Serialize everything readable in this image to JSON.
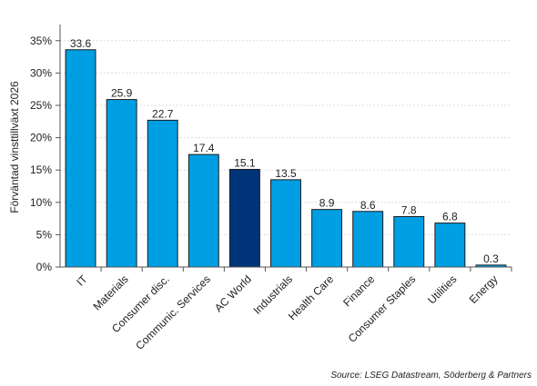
{
  "chart_data": {
    "type": "bar",
    "ylabel": "Förväntad vinsttillväxt 2026",
    "categories": [
      "IT",
      "Materials",
      "Consumer disc.",
      "Communic. Services",
      "AC World",
      "Industrials",
      "Health Care",
      "Finance",
      "Consumer Staples",
      "Utilities",
      "Energy"
    ],
    "values": [
      33.6,
      25.9,
      22.7,
      17.4,
      15.1,
      13.5,
      8.9,
      8.6,
      7.8,
      6.8,
      0.3
    ],
    "data_labels": [
      "33.6",
      "25.9",
      "22.7",
      "17.4",
      "15.1",
      "13.5",
      "8.9",
      "8.6",
      "7.8",
      "6.8",
      "0.3"
    ],
    "ylim": [
      0,
      37.5
    ],
    "yticks": [
      0,
      5,
      10,
      15,
      20,
      25,
      30,
      35
    ],
    "ytick_labels": [
      "0%",
      "5%",
      "10%",
      "15%",
      "20%",
      "25%",
      "30%",
      "35%"
    ],
    "grid": true,
    "highlight_index": 4,
    "colors": {
      "bar": "#009fe3",
      "highlight": "#003478",
      "bar_edge": "#1a1a1a",
      "axis": "#555555",
      "grid": "#dcdcdc"
    }
  },
  "source_text": "Source: LSEG Datastream, Söderberg & Partners"
}
